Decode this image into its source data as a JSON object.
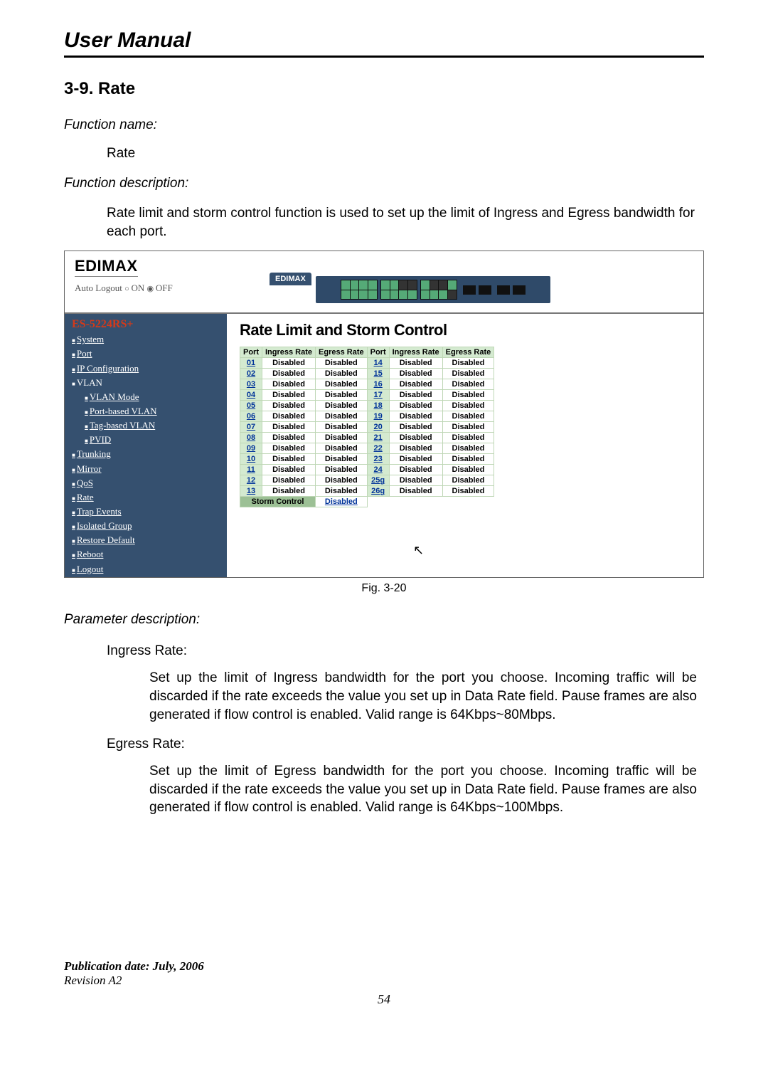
{
  "doc": {
    "title": "User Manual",
    "section": "3-9. Rate",
    "func_name_label": "Function name:",
    "func_name_value": "Rate",
    "func_desc_label": "Function description:",
    "func_desc_body": "Rate limit and storm control function is used to set up the limit of Ingress and Egress bandwidth for each port.",
    "fig_caption": "Fig. 3-20",
    "param_label": "Parameter description:",
    "ingress_label": "Ingress Rate:",
    "ingress_body": "Set up the limit of Ingress bandwidth for the port you choose.  Incoming traffic will be discarded if the rate exceeds the value you set up in Data Rate field. Pause frames are also generated if flow control is enabled. Valid range is 64Kbps~80Mbps.",
    "egress_label": "Egress Rate:",
    "egress_body": "Set up the limit of Egress bandwidth for the port you choose.  Incoming traffic will be discarded if the rate exceeds the value you set up in Data Rate field. Pause frames are also generated if flow control is enabled. Valid range is 64Kbps~100Mbps.",
    "pub": "Publication date: July, 2006",
    "rev": "Revision A2",
    "page": "54"
  },
  "screenshot": {
    "logo": "EDIMAX",
    "auto_logout": "Auto Logout",
    "on": "ON",
    "off": "OFF",
    "device_tab": "EDIMAX",
    "nav": {
      "model": "ES-5224RS+",
      "items": [
        {
          "label": "System",
          "level": 1,
          "ul": true
        },
        {
          "label": "Port",
          "level": 1,
          "ul": true
        },
        {
          "label": "IP Configuration",
          "level": 1,
          "ul": true
        },
        {
          "label": "VLAN",
          "level": 1,
          "ul": false
        },
        {
          "label": "VLAN Mode",
          "level": 2,
          "ul": true
        },
        {
          "label": "Port-based VLAN",
          "level": 2,
          "ul": true
        },
        {
          "label": "Tag-based VLAN",
          "level": 2,
          "ul": true
        },
        {
          "label": "PVID",
          "level": 2,
          "ul": true
        },
        {
          "label": "Trunking",
          "level": 1,
          "ul": true
        },
        {
          "label": "Mirror",
          "level": 1,
          "ul": true
        },
        {
          "label": "QoS",
          "level": 1,
          "ul": true
        },
        {
          "label": "Rate",
          "level": 1,
          "ul": true
        },
        {
          "label": "Trap Events",
          "level": 1,
          "ul": true
        },
        {
          "label": "Isolated Group",
          "level": 1,
          "ul": true
        },
        {
          "label": "Restore Default",
          "level": 1,
          "ul": true
        },
        {
          "label": "Reboot",
          "level": 1,
          "ul": true
        },
        {
          "label": "Logout",
          "level": 1,
          "ul": true
        }
      ]
    },
    "content": {
      "heading": "Rate Limit and Storm Control",
      "cols": [
        "Port",
        "Ingress Rate",
        "Egress Rate",
        "Port",
        "Ingress Rate",
        "Egress Rate"
      ],
      "rows": [
        [
          "01",
          "Disabled",
          "Disabled",
          "14",
          "Disabled",
          "Disabled"
        ],
        [
          "02",
          "Disabled",
          "Disabled",
          "15",
          "Disabled",
          "Disabled"
        ],
        [
          "03",
          "Disabled",
          "Disabled",
          "16",
          "Disabled",
          "Disabled"
        ],
        [
          "04",
          "Disabled",
          "Disabled",
          "17",
          "Disabled",
          "Disabled"
        ],
        [
          "05",
          "Disabled",
          "Disabled",
          "18",
          "Disabled",
          "Disabled"
        ],
        [
          "06",
          "Disabled",
          "Disabled",
          "19",
          "Disabled",
          "Disabled"
        ],
        [
          "07",
          "Disabled",
          "Disabled",
          "20",
          "Disabled",
          "Disabled"
        ],
        [
          "08",
          "Disabled",
          "Disabled",
          "21",
          "Disabled",
          "Disabled"
        ],
        [
          "09",
          "Disabled",
          "Disabled",
          "22",
          "Disabled",
          "Disabled"
        ],
        [
          "10",
          "Disabled",
          "Disabled",
          "23",
          "Disabled",
          "Disabled"
        ],
        [
          "11",
          "Disabled",
          "Disabled",
          "24",
          "Disabled",
          "Disabled"
        ],
        [
          "12",
          "Disabled",
          "Disabled",
          "25g",
          "Disabled",
          "Disabled"
        ],
        [
          "13",
          "Disabled",
          "Disabled",
          "26g",
          "Disabled",
          "Disabled"
        ]
      ],
      "storm_label": "Storm Control",
      "storm_value": "Disabled"
    }
  }
}
